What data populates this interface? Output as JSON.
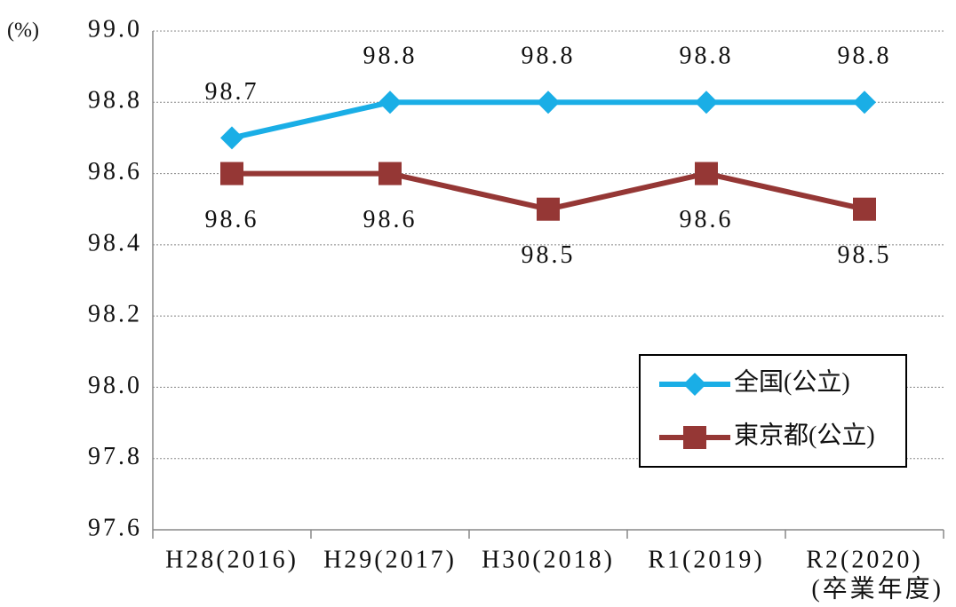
{
  "chart_data": {
    "type": "line",
    "y_label": "(%)",
    "x_label": "(卒業年度)",
    "categories": [
      "H28(2016)",
      "H29(2017)",
      "H30(2018)",
      "R1(2019)",
      "R2(2020)"
    ],
    "series": [
      {
        "name": "全国(公立)",
        "color": "#1aaee6",
        "marker": "diamond",
        "label_side": "above",
        "values": [
          98.7,
          98.8,
          98.8,
          98.8,
          98.8
        ]
      },
      {
        "name": "東京都(公立)",
        "color": "#953735",
        "marker": "square",
        "label_side": "below",
        "values": [
          98.6,
          98.6,
          98.5,
          98.6,
          98.5
        ]
      }
    ],
    "ylim": [
      97.6,
      99.0
    ],
    "yticks": [
      {
        "value": 97.6,
        "label": "97.6"
      },
      {
        "value": 97.8,
        "label": "97.8"
      },
      {
        "value": 98,
        "label": "98.0"
      },
      {
        "value": 98.2,
        "label": "98.2"
      },
      {
        "value": 98.4,
        "label": "98.4"
      },
      {
        "value": 98.6,
        "label": "98.6"
      },
      {
        "value": 98.8,
        "label": "98.8"
      },
      {
        "value": 99,
        "label": "99.0"
      }
    ],
    "grid": true,
    "legend": "lower right"
  }
}
